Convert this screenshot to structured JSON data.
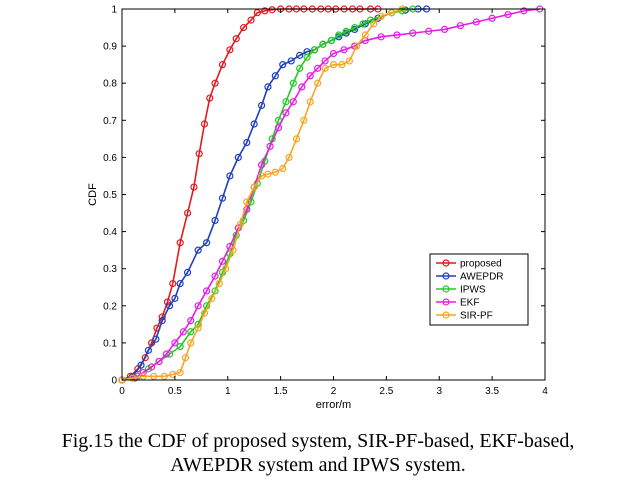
{
  "caption": {
    "line1": "Fig.15 the CDF of proposed system, SIR-PF-based, EKF-based,",
    "line2": "AWEPDR system and IPWS system."
  },
  "chart_data": {
    "type": "line",
    "title": "",
    "xlabel": "error/m",
    "ylabel": "CDF",
    "xlim": [
      0,
      4
    ],
    "ylim": [
      0,
      1
    ],
    "xticks": [
      0,
      0.5,
      1,
      1.5,
      2,
      2.5,
      3,
      3.5,
      4
    ],
    "xtick_labels": [
      "0",
      "0.5",
      "1",
      "1.5",
      "2",
      "2.5",
      "3",
      "3.5",
      "4"
    ],
    "yticks": [
      0,
      0.1,
      0.2,
      0.3,
      0.4,
      0.5,
      0.6,
      0.7,
      0.8,
      0.9,
      1
    ],
    "ytick_labels": [
      "0",
      "0.1",
      "0.2",
      "0.3",
      "0.4",
      "0.5",
      "0.6",
      "0.7",
      "0.8",
      "0.9",
      "1"
    ],
    "grid": false,
    "legend_position": "lower-right",
    "marker": "circle",
    "series": [
      {
        "name": "proposed",
        "color": "#e41a1c",
        "x": [
          0,
          0.08,
          0.15,
          0.22,
          0.28,
          0.33,
          0.38,
          0.43,
          0.48,
          0.55,
          0.62,
          0.68,
          0.73,
          0.78,
          0.83,
          0.88,
          0.95,
          1.02,
          1.08,
          1.15,
          1.22,
          1.28,
          1.35,
          1.42,
          1.5,
          1.58,
          1.65,
          1.72,
          1.8,
          1.88,
          1.95,
          2.02,
          2.1,
          2.18,
          2.25,
          2.35,
          2.42
        ],
        "y": [
          0,
          0.01,
          0.03,
          0.06,
          0.1,
          0.14,
          0.17,
          0.21,
          0.26,
          0.37,
          0.45,
          0.52,
          0.61,
          0.69,
          0.76,
          0.8,
          0.85,
          0.89,
          0.92,
          0.95,
          0.97,
          0.99,
          0.995,
          0.998,
          1,
          1,
          1,
          1,
          1,
          1,
          1,
          1,
          1,
          1,
          1,
          1,
          1
        ]
      },
      {
        "name": "AWEPDR",
        "color": "#1f3fbf",
        "x": [
          0,
          0.1,
          0.18,
          0.25,
          0.32,
          0.38,
          0.45,
          0.5,
          0.55,
          0.62,
          0.72,
          0.8,
          0.88,
          0.95,
          1.02,
          1.1,
          1.18,
          1.25,
          1.32,
          1.38,
          1.45,
          1.52,
          1.6,
          1.68,
          1.75,
          1.82,
          1.9,
          1.98,
          2.05,
          2.12,
          2.2,
          2.3,
          2.42,
          2.55,
          2.68,
          2.8,
          2.88
        ],
        "y": [
          0,
          0.01,
          0.04,
          0.08,
          0.11,
          0.16,
          0.2,
          0.22,
          0.26,
          0.29,
          0.35,
          0.37,
          0.43,
          0.49,
          0.55,
          0.6,
          0.64,
          0.69,
          0.74,
          0.79,
          0.82,
          0.85,
          0.86,
          0.875,
          0.885,
          0.89,
          0.905,
          0.915,
          0.925,
          0.935,
          0.945,
          0.96,
          0.975,
          0.99,
          0.997,
          1,
          1
        ]
      },
      {
        "name": "IPWS",
        "color": "#22cc22",
        "x": [
          0,
          0.15,
          0.25,
          0.35,
          0.45,
          0.55,
          0.65,
          0.72,
          0.8,
          0.88,
          0.95,
          1.02,
          1.08,
          1.15,
          1.22,
          1.28,
          1.35,
          1.42,
          1.48,
          1.55,
          1.62,
          1.68,
          1.75,
          1.82,
          1.9,
          1.98,
          2.05,
          2.12,
          2.2,
          2.28,
          2.35,
          2.45,
          2.55,
          2.65,
          2.75
        ],
        "y": [
          0,
          0.01,
          0.03,
          0.05,
          0.07,
          0.09,
          0.13,
          0.15,
          0.2,
          0.24,
          0.29,
          0.34,
          0.39,
          0.43,
          0.48,
          0.53,
          0.59,
          0.65,
          0.7,
          0.75,
          0.8,
          0.84,
          0.87,
          0.89,
          0.905,
          0.915,
          0.93,
          0.94,
          0.95,
          0.96,
          0.97,
          0.98,
          0.99,
          0.995,
          1
        ]
      },
      {
        "name": "EKF",
        "color": "#e61ee6",
        "x": [
          0,
          0.12,
          0.2,
          0.28,
          0.35,
          0.42,
          0.5,
          0.58,
          0.65,
          0.72,
          0.8,
          0.88,
          0.95,
          1.02,
          1.1,
          1.18,
          1.25,
          1.32,
          1.4,
          1.48,
          1.55,
          1.62,
          1.7,
          1.78,
          1.85,
          1.92,
          2.0,
          2.1,
          2.2,
          2.3,
          2.45,
          2.6,
          2.75,
          2.9,
          3.05,
          3.2,
          3.35,
          3.5,
          3.65,
          3.8,
          3.95
        ],
        "y": [
          0,
          0.005,
          0.02,
          0.035,
          0.05,
          0.07,
          0.1,
          0.13,
          0.16,
          0.2,
          0.24,
          0.28,
          0.32,
          0.36,
          0.41,
          0.46,
          0.52,
          0.58,
          0.63,
          0.68,
          0.72,
          0.75,
          0.79,
          0.82,
          0.84,
          0.86,
          0.88,
          0.89,
          0.9,
          0.915,
          0.925,
          0.93,
          0.935,
          0.94,
          0.945,
          0.955,
          0.965,
          0.975,
          0.985,
          0.995,
          1
        ]
      },
      {
        "name": "SIR-PF",
        "color": "#f5a623",
        "x": [
          0,
          0.1,
          0.2,
          0.3,
          0.4,
          0.48,
          0.55,
          0.6,
          0.65,
          0.72,
          0.78,
          0.85,
          0.92,
          0.98,
          1.05,
          1.12,
          1.18,
          1.25,
          1.32,
          1.38,
          1.45,
          1.52,
          1.58,
          1.65,
          1.72,
          1.78,
          1.85,
          1.92,
          2.0,
          2.08,
          2.15,
          2.22,
          2.3,
          2.38,
          2.45,
          2.55,
          2.65
        ],
        "y": [
          0,
          0.005,
          0.01,
          0.01,
          0.01,
          0.015,
          0.02,
          0.06,
          0.1,
          0.14,
          0.18,
          0.22,
          0.26,
          0.3,
          0.35,
          0.42,
          0.48,
          0.52,
          0.55,
          0.555,
          0.56,
          0.57,
          0.6,
          0.65,
          0.7,
          0.75,
          0.8,
          0.84,
          0.85,
          0.85,
          0.86,
          0.9,
          0.93,
          0.96,
          0.98,
          0.99,
          1
        ]
      }
    ]
  }
}
